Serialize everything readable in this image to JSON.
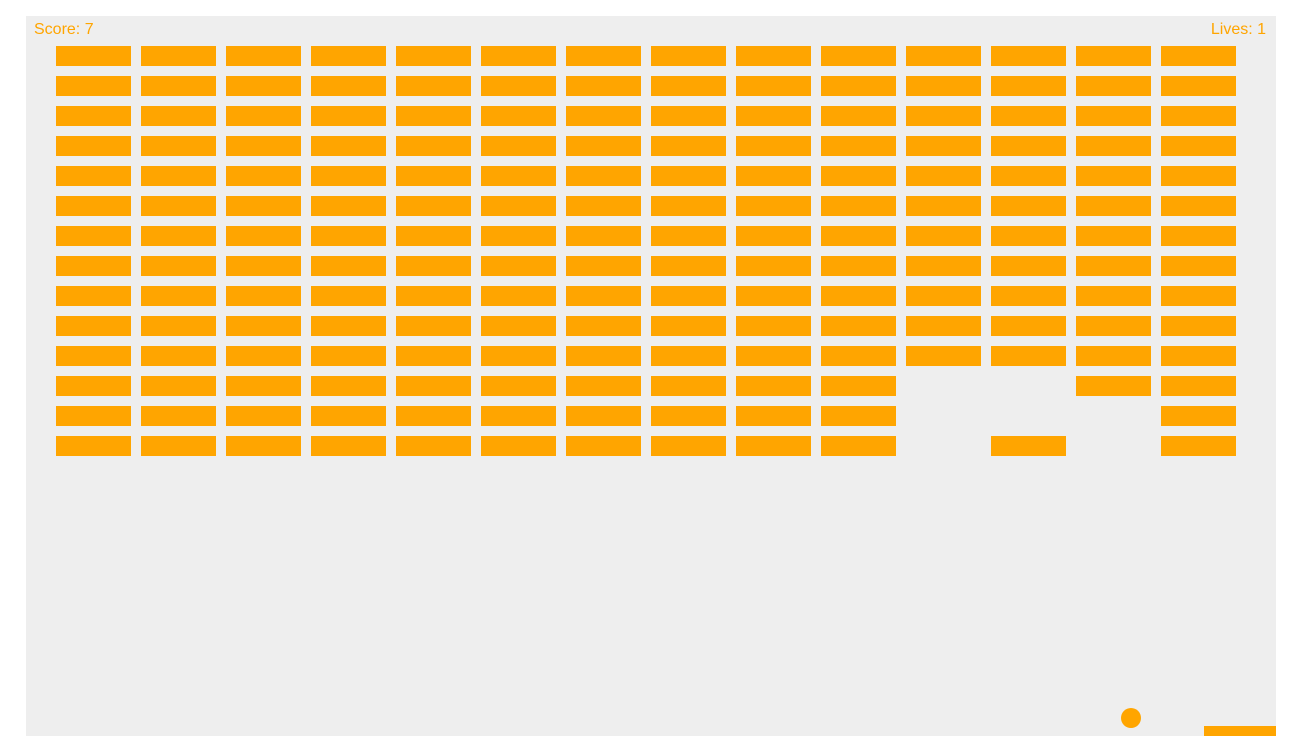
{
  "hud": {
    "score_text": "Score: 7",
    "lives_text": "Lives: 1"
  },
  "colors": {
    "accent": "#ffa500",
    "background": "#eeeeee"
  },
  "bricks": {
    "rows": 14,
    "cols": 14,
    "missing": [
      [
        11,
        10
      ],
      [
        11,
        11
      ],
      [
        12,
        10
      ],
      [
        12,
        11
      ],
      [
        12,
        12
      ],
      [
        13,
        10
      ],
      [
        13,
        12
      ]
    ]
  }
}
